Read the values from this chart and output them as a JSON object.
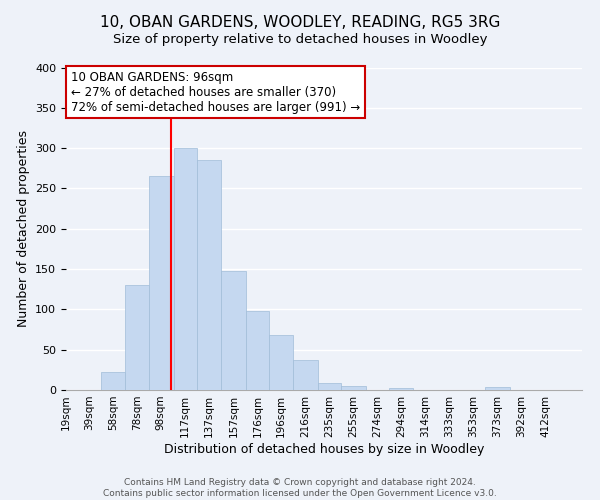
{
  "title": "10, OBAN GARDENS, WOODLEY, READING, RG5 3RG",
  "subtitle": "Size of property relative to detached houses in Woodley",
  "xlabel": "Distribution of detached houses by size in Woodley",
  "ylabel": "Number of detached properties",
  "bar_left_edges": [
    19,
    39,
    58,
    78,
    98,
    117,
    137,
    157,
    176,
    196,
    216,
    235,
    255,
    274,
    294,
    314,
    333,
    353,
    373,
    392
  ],
  "bar_heights": [
    0,
    22,
    130,
    265,
    300,
    285,
    147,
    98,
    68,
    37,
    9,
    5,
    0,
    3,
    0,
    0,
    0,
    4,
    0,
    0
  ],
  "bar_widths": [
    20,
    19,
    20,
    20,
    19,
    20,
    20,
    19,
    20,
    20,
    19,
    20,
    19,
    20,
    20,
    19,
    20,
    20,
    19,
    20
  ],
  "bar_color": "#c5d8f0",
  "bar_edgecolor": "#a0bcd8",
  "vline_x": 96,
  "vline_color": "red",
  "ylim": [
    0,
    400
  ],
  "xlim": [
    10,
    432
  ],
  "xtick_labels": [
    "19sqm",
    "39sqm",
    "58sqm",
    "78sqm",
    "98sqm",
    "117sqm",
    "137sqm",
    "157sqm",
    "176sqm",
    "196sqm",
    "216sqm",
    "235sqm",
    "255sqm",
    "274sqm",
    "294sqm",
    "314sqm",
    "333sqm",
    "353sqm",
    "373sqm",
    "392sqm",
    "412sqm"
  ],
  "xtick_positions": [
    10,
    29,
    48.5,
    68,
    87.5,
    107,
    127,
    147,
    166.5,
    186,
    206,
    225.5,
    245,
    264.5,
    284,
    304,
    323,
    343,
    362.5,
    382,
    402
  ],
  "annotation_title": "10 OBAN GARDENS: 96sqm",
  "annotation_line1": "← 27% of detached houses are smaller (370)",
  "annotation_line2": "72% of semi-detached houses are larger (991) →",
  "footer1": "Contains HM Land Registry data © Crown copyright and database right 2024.",
  "footer2": "Contains public sector information licensed under the Open Government Licence v3.0.",
  "background_color": "#eef2f9",
  "grid_color": "white",
  "title_fontsize": 11,
  "subtitle_fontsize": 9.5,
  "axis_label_fontsize": 9,
  "tick_fontsize": 7.5,
  "footer_fontsize": 6.5,
  "annotation_fontsize": 8.5
}
